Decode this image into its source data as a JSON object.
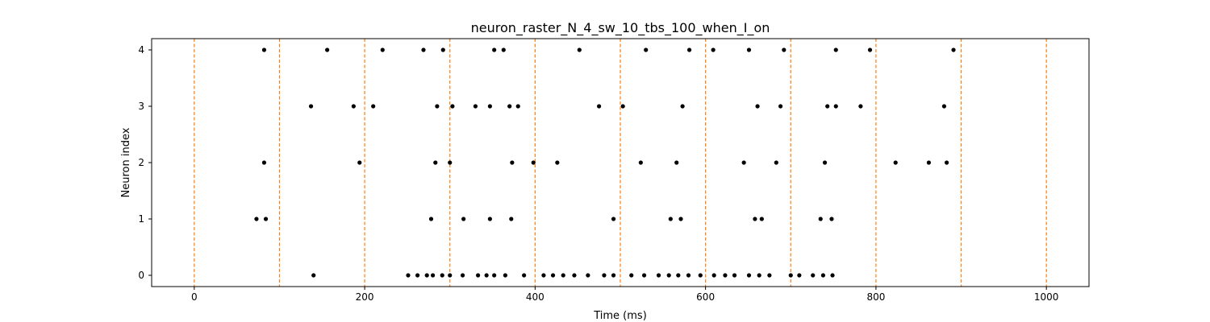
{
  "chart_data": {
    "type": "scatter",
    "title": "neuron_raster_N_4_sw_10_tbs_100_when_I_on",
    "xlabel": "Time (ms)",
    "ylabel": "Neuron index",
    "xlim": [
      -50,
      1050
    ],
    "ylim": [
      -0.2,
      4.2
    ],
    "x_ticks": [
      0,
      200,
      400,
      600,
      800,
      1000
    ],
    "y_ticks": [
      0,
      1,
      2,
      3,
      4
    ],
    "grid": false,
    "legend": "none",
    "marker_color": "#000000",
    "vline_color": "#ff7f0e",
    "vlines": [
      0,
      100,
      200,
      300,
      400,
      500,
      600,
      700,
      800,
      900,
      1000
    ],
    "series": [
      {
        "neuron": 0,
        "x": [
          140,
          251,
          262,
          273,
          280,
          291,
          300,
          315,
          333,
          343,
          352,
          365,
          387,
          410,
          421,
          433,
          446,
          462,
          481,
          492,
          513,
          528,
          545,
          557,
          568,
          580,
          594,
          610,
          623,
          634,
          651,
          663,
          675,
          700,
          710,
          726,
          738,
          749
        ]
      },
      {
        "neuron": 1,
        "x": [
          73,
          84,
          278,
          316,
          347,
          372,
          492,
          559,
          571,
          658,
          666,
          735,
          748
        ]
      },
      {
        "neuron": 2,
        "x": [
          82,
          194,
          283,
          300,
          373,
          398,
          426,
          524,
          566,
          645,
          683,
          740,
          823,
          862,
          883
        ]
      },
      {
        "neuron": 3,
        "x": [
          137,
          187,
          210,
          285,
          303,
          330,
          347,
          370,
          380,
          475,
          503,
          573,
          661,
          688,
          743,
          753,
          782,
          880
        ]
      },
      {
        "neuron": 4,
        "x": [
          82,
          156,
          221,
          269,
          292,
          352,
          363,
          452,
          530,
          581,
          609,
          651,
          692,
          753,
          793,
          891
        ]
      }
    ]
  }
}
